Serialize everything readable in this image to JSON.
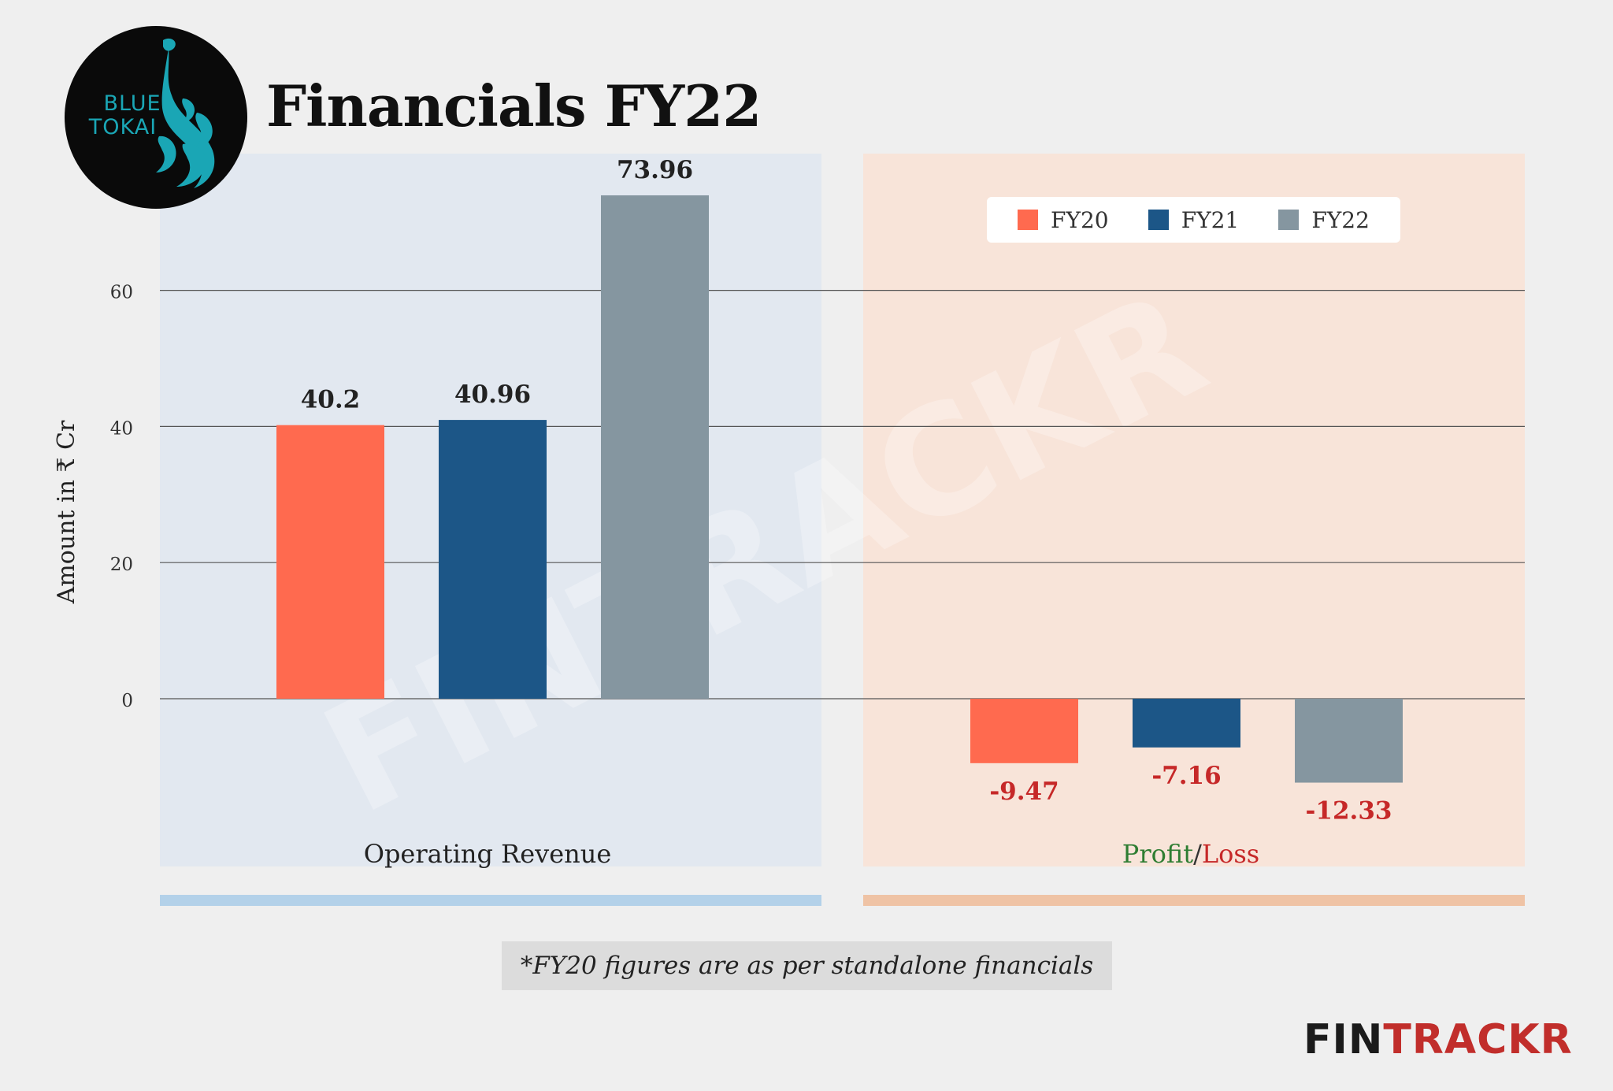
{
  "title": "Financials FY22",
  "logo": {
    "line1": "BLUE",
    "line2": "TOKAI",
    "icon": "peacock-icon",
    "color": "#1aa6b5"
  },
  "colors": {
    "fy20": "#ff6a4f",
    "fy21": "#1c5687",
    "fy22": "#8596a0",
    "negative_label": "#c62828",
    "profit_green": "#2e7d32",
    "loss_red": "#c62828"
  },
  "legend": [
    {
      "label": "FY20",
      "color": "#ff6a4f"
    },
    {
      "label": "FY21",
      "color": "#1c5687"
    },
    {
      "label": "FY22",
      "color": "#8596a0"
    }
  ],
  "chart_data": {
    "type": "bar",
    "categories": [
      "Operating Revenue",
      "Profit/Loss"
    ],
    "series": [
      {
        "name": "FY20",
        "values": [
          40.2,
          -9.47
        ]
      },
      {
        "name": "FY21",
        "values": [
          40.96,
          -7.16
        ]
      },
      {
        "name": "FY22",
        "values": [
          73.96,
          -12.33
        ]
      }
    ],
    "data_labels": [
      [
        "40.2",
        "-9.47"
      ],
      [
        "40.96",
        "-7.16"
      ],
      [
        "73.96",
        "-12.33"
      ]
    ],
    "ylabel": "Amount in ₹ Cr",
    "yticks": [
      "0",
      "20",
      "40",
      "60"
    ],
    "ytick_values": [
      0,
      20,
      40,
      60
    ],
    "ylim": [
      -20,
      80
    ],
    "grid": true,
    "legend_position": "top-right",
    "category_labels": {
      "revenue": "Operating Revenue",
      "profit": "Profit",
      "separator": "/",
      "loss": "Loss"
    }
  },
  "watermark": "FINTRACKR",
  "note": "*FY20 figures are as per standalone financials",
  "brand": {
    "part1": "FIN",
    "part2": "TRACKR"
  }
}
